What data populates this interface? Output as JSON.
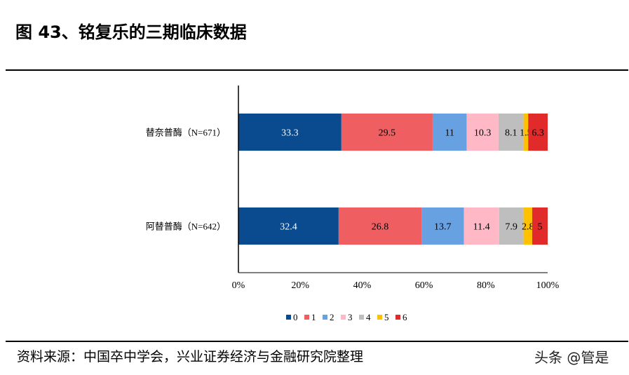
{
  "title": "图 43、铭复乐的三期临床数据",
  "source": "资料来源：中国卒中学会，兴业证券经济与金融研究院整理",
  "watermark": "头条 @管是",
  "chart_data": {
    "type": "bar",
    "orientation": "horizontal",
    "stacked": "percent",
    "categories": [
      "替奈普酶（N=671）",
      "阿替普酶（N=642）"
    ],
    "series": [
      {
        "name": "0",
        "color": "#0a4a8e",
        "values": [
          33.3,
          32.4
        ],
        "label_color": "#ffffff"
      },
      {
        "name": "1",
        "color": "#ef5f62",
        "values": [
          29.5,
          26.8
        ],
        "label_color": "#000000"
      },
      {
        "name": "2",
        "color": "#68a1e2",
        "values": [
          11,
          13.7
        ],
        "label_color": "#000000"
      },
      {
        "name": "3",
        "color": "#ffb8c6",
        "values": [
          10.3,
          11.4
        ],
        "label_color": "#000000"
      },
      {
        "name": "4",
        "color": "#bebebe",
        "values": [
          8.1,
          7.9
        ],
        "label_color": "#000000"
      },
      {
        "name": "5",
        "color": "#ffc000",
        "values": [
          1.5,
          2.8
        ],
        "label_color": "#000000"
      },
      {
        "name": "6",
        "color": "#e12a2a",
        "values": [
          6.3,
          5
        ],
        "label_color": "#000000"
      }
    ],
    "xlim": [
      0,
      100
    ],
    "xticks": [
      "0%",
      "20%",
      "40%",
      "60%",
      "80%",
      "100%"
    ],
    "grid": false,
    "legend": "bottom"
  }
}
